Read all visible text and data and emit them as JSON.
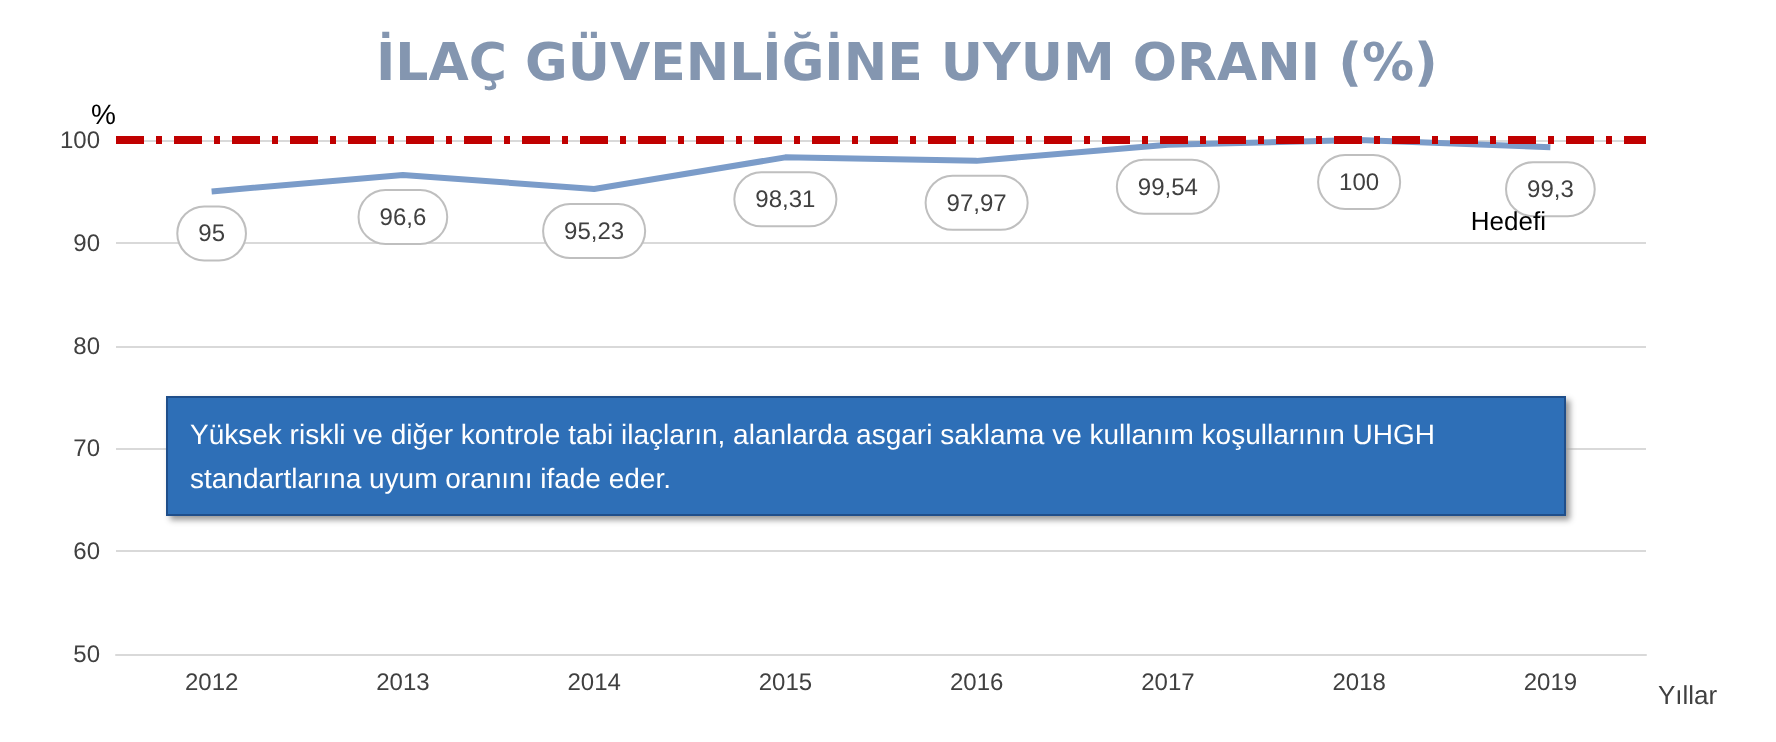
{
  "chart_data": {
    "type": "line",
    "title": "İLAÇ GÜVENLİĞİNE UYUM ORANI (%)",
    "ylabel": "%",
    "xlabel": "Yıllar",
    "categories": [
      "2012",
      "2013",
      "2014",
      "2015",
      "2016",
      "2017",
      "2018",
      "2019"
    ],
    "series": [
      {
        "color": "#7b9cc9",
        "values": [
          95,
          96.6,
          95.23,
          98.31,
          97.97,
          99.54,
          100,
          99.3
        ],
        "value_labels": [
          "95",
          "96,6",
          "95,23",
          "98,31",
          "97,97",
          "99,54",
          "100",
          "99,3"
        ]
      }
    ],
    "ylim": [
      50,
      100
    ],
    "yticks": [
      50,
      60,
      70,
      80,
      90,
      100
    ],
    "grid": "y",
    "line_style": "solid",
    "ref_lines": [
      {
        "axis": "y",
        "value": 100,
        "label": "Hedefi",
        "color": "#c00000",
        "line_style": "dashed"
      }
    ],
    "annotations": [
      "Yüksek riskli ve diğer kontrole tabi ilaçların, alanlarda asgari saklama ve kullanım koşullarının UHGH standartlarına uyum oranını ifade eder."
    ]
  }
}
